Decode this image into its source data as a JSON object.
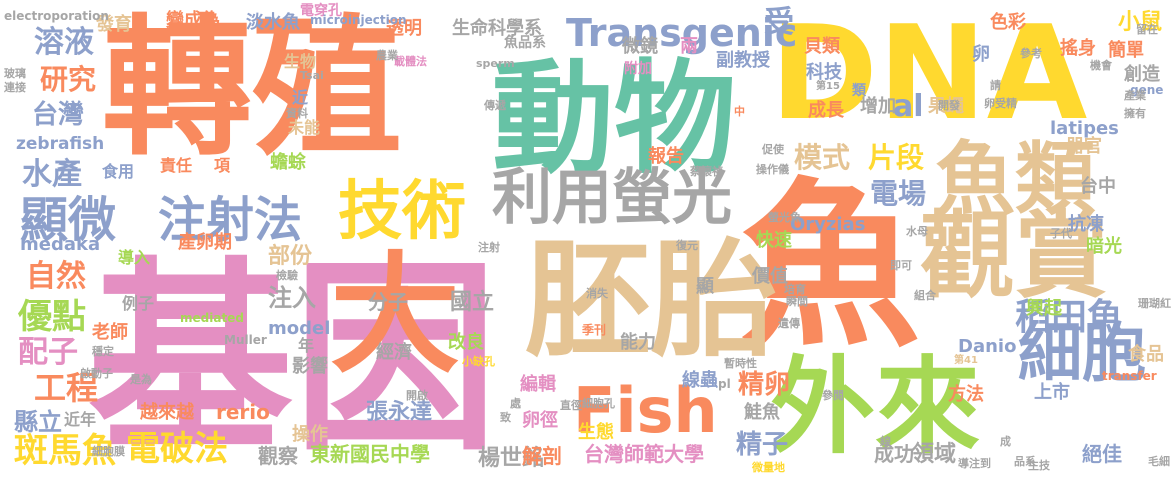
{
  "colors": {
    "pink": "#E48FC2",
    "orange": "#F98A5E",
    "green": "#66C2A5",
    "yellow": "#FFD92F",
    "tan": "#E5C494",
    "gray": "#A6A6A6",
    "blue": "#8DA0CB",
    "lime": "#A6D854"
  },
  "words": [
    {
      "text": "基因",
      "color": "pink"
    },
    {
      "text": "轉殖",
      "color": "orange"
    },
    {
      "text": "動物",
      "color": "green"
    },
    {
      "text": "DNA",
      "color": "yellow"
    },
    {
      "text": "魚",
      "color": "orange"
    },
    {
      "text": "胚胎",
      "color": "tan"
    },
    {
      "text": "外來",
      "color": "lime"
    },
    {
      "text": "魚類",
      "color": "tan"
    },
    {
      "text": "觀賞",
      "color": "tan"
    },
    {
      "text": "細胞",
      "color": "blue"
    },
    {
      "text": "利用螢光",
      "color": "gray"
    },
    {
      "text": "技術",
      "color": "yellow"
    },
    {
      "text": "Fish",
      "color": "orange"
    },
    {
      "text": "注射法",
      "color": "blue"
    },
    {
      "text": "顯微",
      "color": "blue"
    },
    {
      "text": "Transgenic",
      "color": "blue"
    },
    {
      "text": "稻田魚",
      "color": "blue"
    },
    {
      "text": "大",
      "color": "orange"
    },
    {
      "text": "電破法",
      "color": "yellow"
    },
    {
      "text": "斑馬魚",
      "color": "yellow"
    },
    {
      "text": "工程",
      "color": "orange"
    },
    {
      "text": "優點",
      "color": "lime"
    },
    {
      "text": "自然",
      "color": "orange"
    },
    {
      "text": "配子",
      "color": "pink"
    },
    {
      "text": "溶液",
      "color": "blue"
    },
    {
      "text": "研究",
      "color": "orange"
    },
    {
      "text": "台灣",
      "color": "blue"
    },
    {
      "text": "水產",
      "color": "blue"
    },
    {
      "text": "電場",
      "color": "blue"
    },
    {
      "text": "模式",
      "color": "tan"
    },
    {
      "text": "片段",
      "color": "yellow"
    },
    {
      "text": "精卵",
      "color": "orange"
    },
    {
      "text": "精子",
      "color": "blue"
    },
    {
      "text": "受",
      "color": "blue"
    },
    {
      "text": "al",
      "color": "blue"
    },
    {
      "text": "小鼠",
      "color": "yellow"
    },
    {
      "text": "zebrafish",
      "color": "blue"
    },
    {
      "text": "電穿孔",
      "color": "pink"
    },
    {
      "text": "medaka",
      "color": "blue"
    },
    {
      "text": "Oryzias",
      "color": "blue"
    },
    {
      "text": "latipes",
      "color": "blue"
    },
    {
      "text": "Danio",
      "color": "blue"
    },
    {
      "text": "rerio",
      "color": "orange"
    },
    {
      "text": "model",
      "color": "blue"
    },
    {
      "text": "國立",
      "color": "gray"
    },
    {
      "text": "分子",
      "color": "gray"
    },
    {
      "text": "注入",
      "color": "gray"
    },
    {
      "text": "部份",
      "color": "tan"
    },
    {
      "text": "張永達",
      "color": "blue"
    },
    {
      "text": "楊世銘",
      "color": "gray"
    },
    {
      "text": "東新國民中學",
      "color": "lime"
    },
    {
      "text": "台灣師範大學",
      "color": "pink"
    },
    {
      "text": "縣立",
      "color": "blue"
    },
    {
      "text": "近年",
      "color": "gray"
    },
    {
      "text": "觀察",
      "color": "gray"
    },
    {
      "text": "越來越",
      "color": "orange"
    },
    {
      "text": "操作",
      "color": "tan"
    },
    {
      "text": "經濟",
      "color": "gray"
    },
    {
      "text": "改良",
      "color": "lime"
    },
    {
      "text": "能力",
      "color": "gray"
    },
    {
      "text": "線蟲",
      "color": "blue"
    },
    {
      "text": "編輯",
      "color": "pink"
    },
    {
      "text": "卵徑",
      "color": "pink"
    },
    {
      "text": "生態",
      "color": "yellow"
    },
    {
      "text": "解剖",
      "color": "orange"
    },
    {
      "text": "領域",
      "color": "gray"
    },
    {
      "text": "成功",
      "color": "gray"
    },
    {
      "text": "絕佳",
      "color": "blue"
    },
    {
      "text": "興起",
      "color": "lime"
    },
    {
      "text": "上市",
      "color": "blue"
    },
    {
      "text": "鮭魚",
      "color": "gray"
    },
    {
      "text": "方法",
      "color": "orange"
    },
    {
      "text": "食品",
      "color": "tan"
    },
    {
      "text": "台中",
      "color": "gray"
    },
    {
      "text": "抗凍",
      "color": "blue"
    },
    {
      "text": "暗光",
      "color": "lime"
    },
    {
      "text": "器官",
      "color": "tan"
    },
    {
      "text": "果蠅",
      "color": "tan"
    },
    {
      "text": "增加",
      "color": "gray"
    },
    {
      "text": "報告",
      "color": "orange"
    },
    {
      "text": "生命科學系",
      "color": "gray"
    },
    {
      "text": "透明",
      "color": "orange"
    },
    {
      "text": "淡水魚",
      "color": "blue"
    },
    {
      "text": "變成為",
      "color": "orange"
    },
    {
      "text": "發育",
      "color": "tan"
    },
    {
      "text": "微鏡",
      "color": "gray"
    },
    {
      "text": "兩",
      "color": "pink"
    },
    {
      "text": "副教授",
      "color": "blue"
    },
    {
      "text": "附加",
      "color": "pink"
    },
    {
      "text": "貝類",
      "color": "orange"
    },
    {
      "text": "科技",
      "color": "blue"
    },
    {
      "text": "類",
      "color": "blue"
    },
    {
      "text": "成長",
      "color": "orange"
    },
    {
      "text": "色彩",
      "color": "orange"
    },
    {
      "text": "卵",
      "color": "blue"
    },
    {
      "text": "搖身",
      "color": "orange"
    },
    {
      "text": "簡單",
      "color": "orange"
    },
    {
      "text": "創造",
      "color": "gray"
    },
    {
      "text": "生物",
      "color": "tan"
    },
    {
      "text": "近",
      "color": "blue"
    },
    {
      "text": "未能",
      "color": "tan"
    },
    {
      "text": "蟾蜍",
      "color": "lime"
    },
    {
      "text": "項",
      "color": "orange"
    },
    {
      "text": "責任",
      "color": "orange"
    },
    {
      "text": "食用",
      "color": "blue"
    },
    {
      "text": "產卵期",
      "color": "orange"
    },
    {
      "text": "導入",
      "color": "lime"
    },
    {
      "text": "例子",
      "color": "gray"
    },
    {
      "text": "老師",
      "color": "orange"
    },
    {
      "text": "影響",
      "color": "gray"
    },
    {
      "text": "年",
      "color": "gray"
    },
    {
      "text": "快速",
      "color": "lime"
    },
    {
      "text": "價值",
      "color": "gray"
    },
    {
      "text": "顯",
      "color": "gray"
    },
    {
      "text": "季刊",
      "color": "orange"
    },
    {
      "text": "魚品系",
      "color": "gray"
    },
    {
      "text": "electroporation",
      "color": "gray"
    },
    {
      "text": "microinjection",
      "color": "blue"
    },
    {
      "text": "sperm",
      "color": "gray"
    },
    {
      "text": "mediated",
      "color": "lime"
    },
    {
      "text": "Muller",
      "color": "gray"
    },
    {
      "text": "transfer",
      "color": "orange"
    },
    {
      "text": "gene",
      "color": "blue"
    },
    {
      "text": "pl",
      "color": "gray"
    },
    {
      "text": "Tsai",
      "color": "gray"
    },
    {
      "text": "第15",
      "color": "gray"
    },
    {
      "text": "第41",
      "color": "tan"
    },
    {
      "text": "螢光魚",
      "color": "gray"
    },
    {
      "text": "水母",
      "color": "gray"
    },
    {
      "text": "即可",
      "color": "gray"
    },
    {
      "text": "組合",
      "color": "gray"
    },
    {
      "text": "遺傳",
      "color": "gray"
    },
    {
      "text": "微量地",
      "color": "yellow"
    },
    {
      "text": "生技",
      "color": "gray"
    },
    {
      "text": "品系",
      "color": "gray"
    },
    {
      "text": "子代",
      "color": "gray"
    },
    {
      "text": "毛細",
      "color": "gray"
    },
    {
      "text": "珊瑚紅",
      "color": "gray"
    },
    {
      "text": "卵受精",
      "color": "gray"
    },
    {
      "text": "開發",
      "color": "gray"
    },
    {
      "text": "操作儀",
      "color": "gray"
    },
    {
      "text": "蔡懷禎",
      "color": "gray"
    },
    {
      "text": "促使",
      "color": "gray"
    },
    {
      "text": "傳遞",
      "color": "gray"
    },
    {
      "text": "資料",
      "color": "gray"
    },
    {
      "text": "載體法",
      "color": "pink"
    },
    {
      "text": "農業",
      "color": "gray"
    },
    {
      "text": "參考",
      "color": "gray"
    },
    {
      "text": "機會",
      "color": "gray"
    },
    {
      "text": "產業",
      "color": "gray"
    },
    {
      "text": "擁有",
      "color": "gray"
    },
    {
      "text": "留在",
      "color": "gray"
    },
    {
      "text": "請",
      "color": "gray"
    },
    {
      "text": "注射",
      "color": "gray"
    },
    {
      "text": "檢驗",
      "color": "gray"
    },
    {
      "text": "復元",
      "color": "gray"
    },
    {
      "text": "消失",
      "color": "gray"
    },
    {
      "text": "培育",
      "color": "gray"
    },
    {
      "text": "瞬間",
      "color": "gray"
    },
    {
      "text": "穩定",
      "color": "gray"
    },
    {
      "text": "啟動子",
      "color": "gray"
    },
    {
      "text": "是為",
      "color": "gray"
    },
    {
      "text": "細胞膜",
      "color": "gray"
    },
    {
      "text": "細胞孔",
      "color": "gray"
    },
    {
      "text": "開啟",
      "color": "gray"
    },
    {
      "text": "直徑",
      "color": "gray"
    },
    {
      "text": "小缺孔",
      "color": "yellow"
    },
    {
      "text": "暫時性",
      "color": "gray"
    },
    {
      "text": "導注到",
      "color": "gray"
    },
    {
      "text": "處",
      "color": "gray"
    },
    {
      "text": "參閱",
      "color": "gray"
    },
    {
      "text": "線",
      "color": "gray"
    },
    {
      "text": "成",
      "color": "gray"
    },
    {
      "text": "中",
      "color": "orange"
    },
    {
      "text": "致",
      "color": "gray"
    },
    {
      "text": "玻璃",
      "color": "gray"
    },
    {
      "text": "連接",
      "color": "gray"
    }
  ]
}
